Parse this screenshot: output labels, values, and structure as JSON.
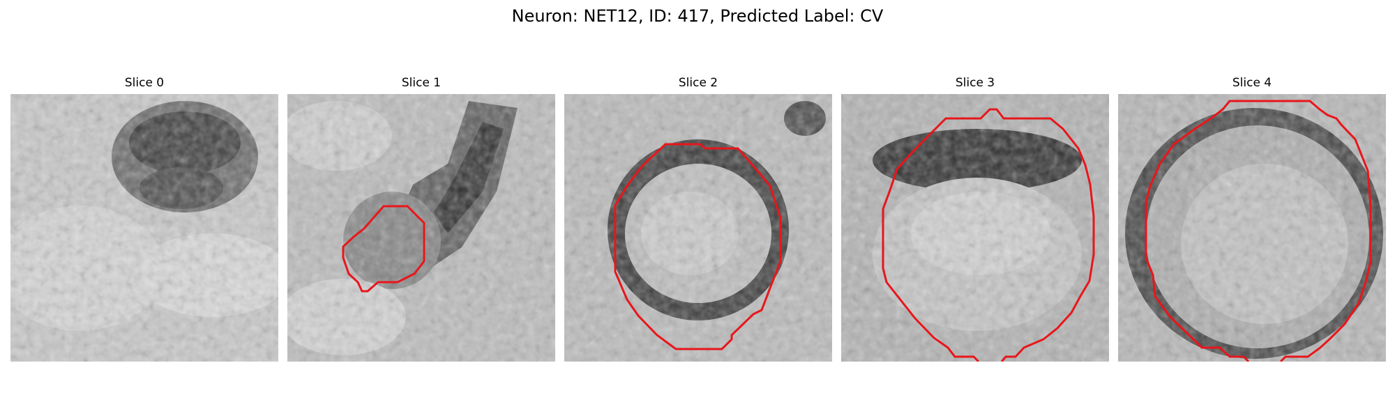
{
  "figure": {
    "title": "Neuron: NET12, ID: 417, Predicted Label: CV"
  },
  "slices": [
    {
      "label": "Slice 0"
    },
    {
      "label": "Slice 1"
    },
    {
      "label": "Slice 2"
    },
    {
      "label": "Slice 3"
    },
    {
      "label": "Slice 4"
    }
  ],
  "colors": {
    "contour": "#e8161b",
    "background": "#ffffff"
  }
}
